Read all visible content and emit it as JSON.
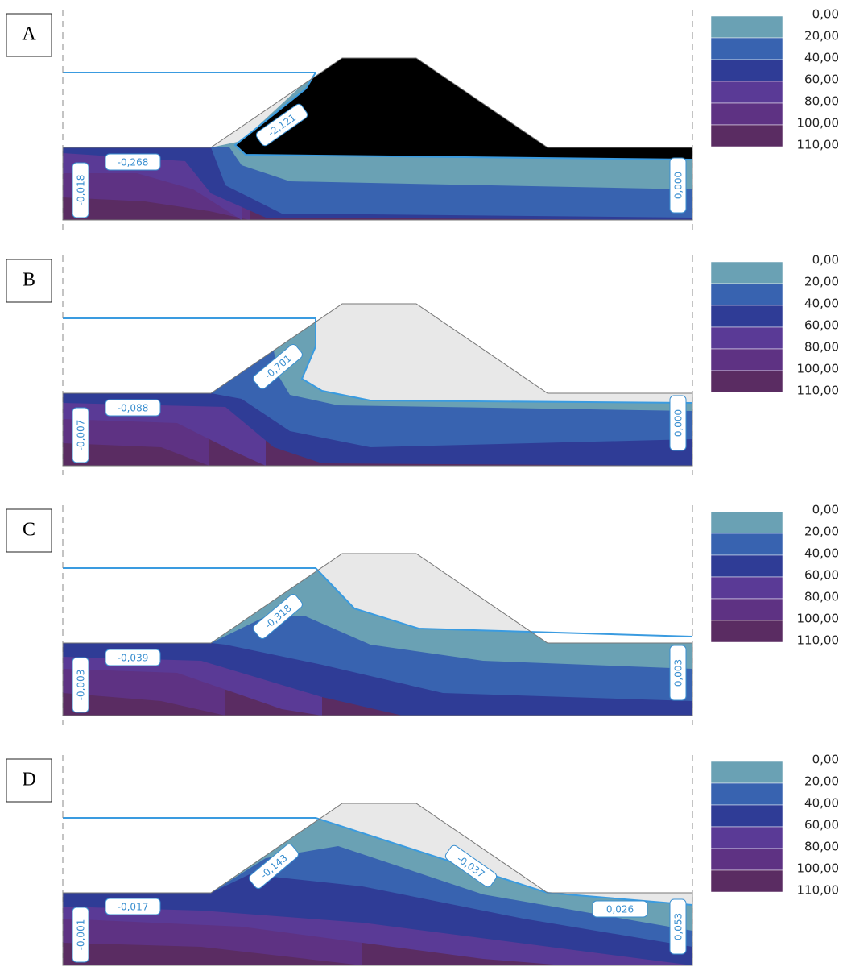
{
  "legend": [
    "0,00",
    "20,00",
    "40,00",
    "60,00",
    "80,00",
    "100,00",
    "110,00"
  ],
  "panels": [
    {
      "label": "A",
      "annotations": [
        "-0,268",
        "-0,018",
        "-2,121",
        "0,000"
      ]
    },
    {
      "label": "B",
      "annotations": [
        "-0,088",
        "-0,007",
        "-0,701",
        "0,000"
      ]
    },
    {
      "label": "C",
      "annotations": [
        "-0,039",
        "-0,003",
        "-0,318",
        "0,003"
      ]
    },
    {
      "label": "D",
      "annotations": [
        "-0,017",
        "-0,001",
        "-0,143",
        "-0,037",
        "0,026",
        "0,053"
      ]
    }
  ]
}
